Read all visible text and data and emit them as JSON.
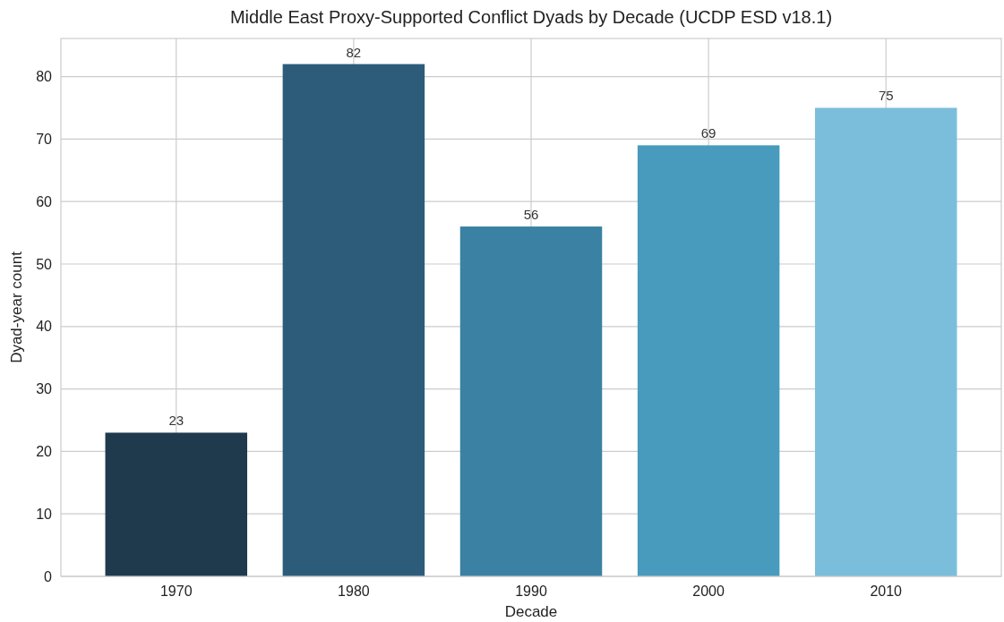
{
  "chart_data": {
    "type": "bar",
    "title": "Middle East Proxy-Supported Conflict Dyads by Decade (UCDP ESD v18.1)",
    "xlabel": "Decade",
    "ylabel": "Dyad-year count",
    "categories": [
      "1970",
      "1980",
      "1990",
      "2000",
      "2010"
    ],
    "values": [
      23,
      82,
      56,
      69,
      75
    ],
    "colors": [
      "#1f3a4d",
      "#2d5c7a",
      "#3a81a3",
      "#489bbd",
      "#7bbedc"
    ],
    "ylim": [
      0,
      86.1
    ],
    "yticks": [
      0,
      10,
      20,
      30,
      40,
      50,
      60,
      70,
      80
    ],
    "grid": true,
    "data_labels": true
  }
}
